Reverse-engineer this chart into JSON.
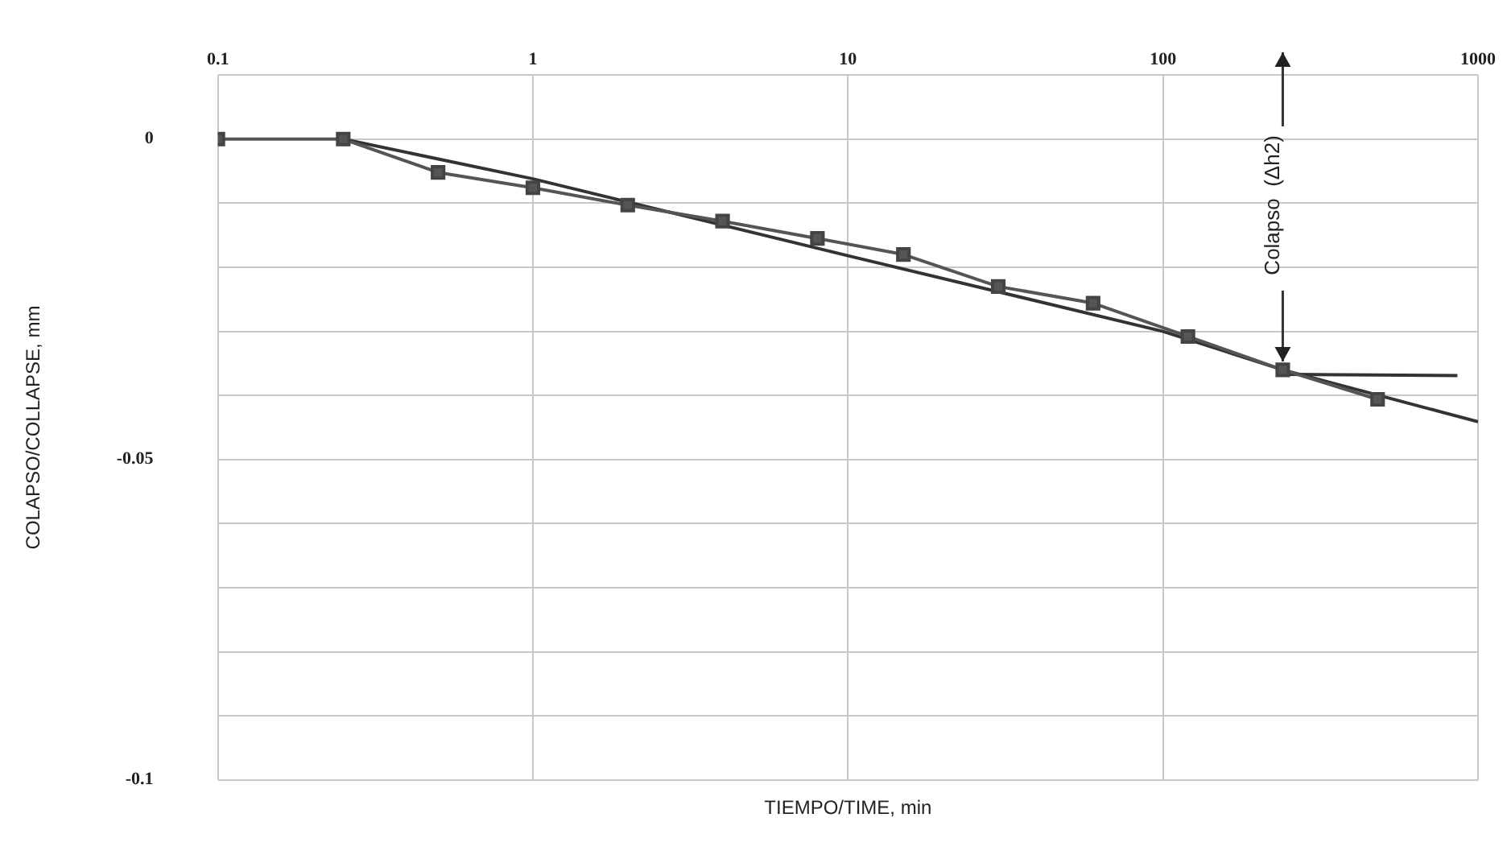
{
  "chart_data": {
    "type": "line",
    "xlabel": "TIEMPO/TIME, min",
    "ylabel": "COLAPSO/COLLAPSE, mm",
    "log": "x",
    "grid": true,
    "legend": false,
    "xlim": [
      0.1,
      1000
    ],
    "xticks": [
      0.1,
      1,
      10,
      100,
      1000
    ],
    "ylim": [
      -0.1,
      0.01
    ],
    "yticks": [
      {
        "value": 0.01,
        "label": null
      },
      0,
      {
        "value": -0.01,
        "label": null
      },
      {
        "value": -0.02,
        "label": null
      },
      {
        "value": -0.03,
        "label": null
      },
      {
        "value": -0.04,
        "label": null
      },
      -0.05,
      {
        "value": -0.06,
        "label": null
      },
      {
        "value": -0.07,
        "label": null
      },
      {
        "value": -0.08,
        "label": null
      },
      {
        "value": -0.09,
        "label": null
      },
      -0.1
    ],
    "series": [
      {
        "color": "#555555",
        "marker": "square",
        "x": [
          0.1,
          0.25,
          0.5,
          1,
          2,
          4,
          8,
          15,
          30,
          60,
          120,
          240,
          480
        ],
        "values": [
          0,
          0,
          -0.0052,
          -0.0076,
          -0.0103,
          -0.0128,
          -0.0155,
          -0.018,
          -0.023,
          -0.0256,
          -0.0308,
          -0.036,
          -0.0406
        ]
      },
      {
        "color": "#333333",
        "marker": "none",
        "x": [
          0.25,
          1,
          10,
          100,
          240,
          1000
        ],
        "values": [
          0,
          -0.0062,
          -0.0182,
          -0.03,
          -0.036,
          -0.0441
        ]
      },
      {
        "color": "#333333",
        "marker": "none",
        "x": [
          240,
          860
        ],
        "values": [
          -0.0367,
          -0.0369
        ]
      }
    ],
    "annotations": [
      {
        "text": "Colapso  (Δh2)",
        "x": 240,
        "y": -0.0367
      }
    ]
  }
}
